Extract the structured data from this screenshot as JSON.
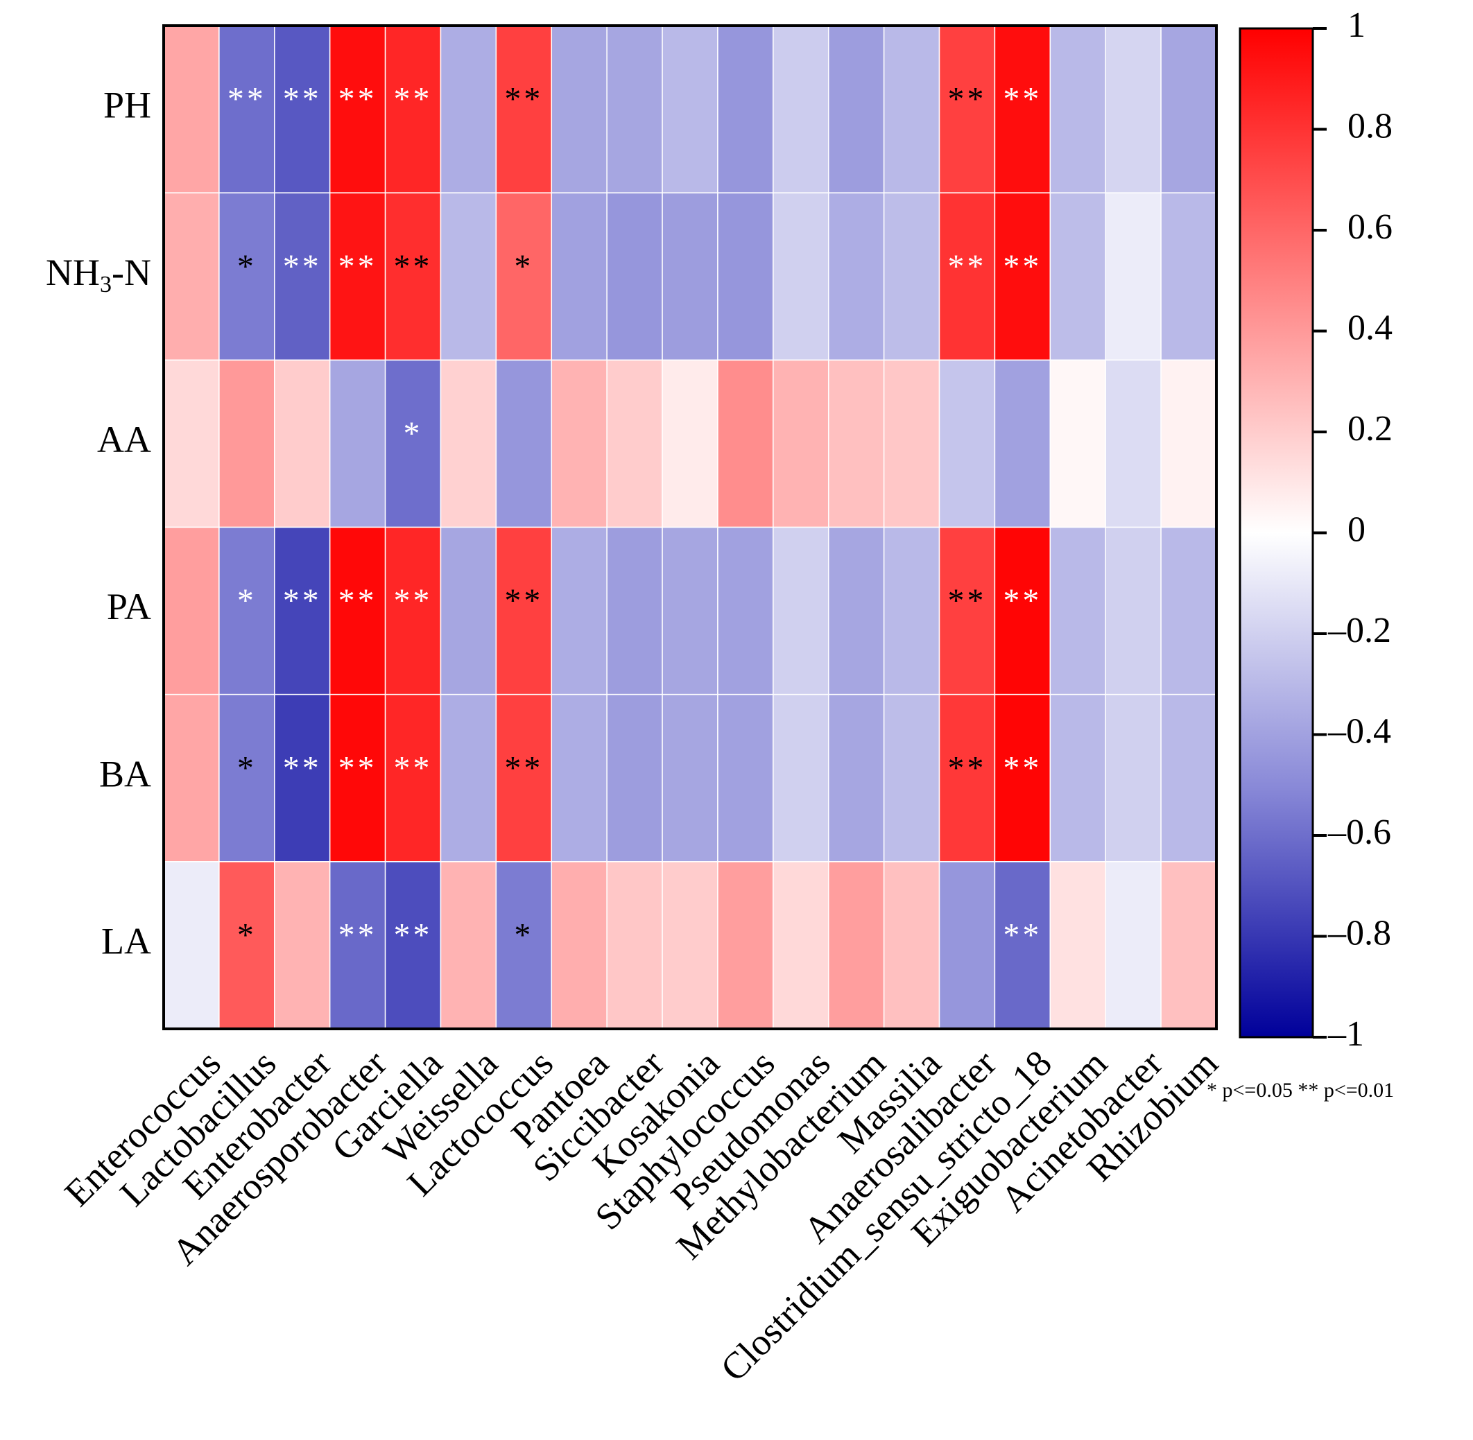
{
  "chart_data": {
    "type": "heatmap",
    "title": "",
    "rows": [
      "PH",
      "NH3-N",
      "AA",
      "PA",
      "BA",
      "LA"
    ],
    "row_labels": [
      {
        "main": "PH",
        "sub": "",
        "tail": ""
      },
      {
        "main": "NH",
        "sub": "3",
        "tail": "-N"
      },
      {
        "main": "AA",
        "sub": "",
        "tail": ""
      },
      {
        "main": "PA",
        "sub": "",
        "tail": ""
      },
      {
        "main": "BA",
        "sub": "",
        "tail": ""
      },
      {
        "main": "LA",
        "sub": "",
        "tail": ""
      }
    ],
    "columns": [
      "Enterococcus",
      "Lactobacillus",
      "Enterobacter",
      "Anaerosporobacter",
      "Garciella",
      "Weissella",
      "Lactococcus",
      "Pantoea",
      "Siccibacter",
      "Kosakonia",
      "Staphylococcus",
      "Pseudomonas",
      "Methylobacterium",
      "Massilia",
      "Anaerosalibacter",
      "Clostridium_sensu_stricto_18",
      "Exiguobacterium",
      "Acinetobacter",
      "Rhizobium"
    ],
    "values": [
      [
        0.35,
        -0.6,
        -0.68,
        0.95,
        0.85,
        -0.35,
        0.75,
        -0.38,
        -0.38,
        -0.3,
        -0.45,
        -0.22,
        -0.42,
        -0.3,
        0.75,
        0.95,
        -0.3,
        -0.18,
        -0.38
      ],
      [
        0.32,
        -0.55,
        -0.65,
        0.92,
        0.82,
        -0.3,
        0.6,
        -0.4,
        -0.45,
        -0.42,
        -0.45,
        -0.2,
        -0.35,
        -0.28,
        0.8,
        0.95,
        -0.28,
        -0.08,
        -0.3
      ],
      [
        0.15,
        0.4,
        0.2,
        -0.38,
        -0.6,
        0.18,
        -0.45,
        0.3,
        0.2,
        0.08,
        0.45,
        0.3,
        0.25,
        0.22,
        -0.25,
        -0.4,
        0.03,
        -0.15,
        0.05
      ],
      [
        0.38,
        -0.55,
        -0.75,
        0.97,
        0.85,
        -0.38,
        0.75,
        -0.35,
        -0.42,
        -0.38,
        -0.4,
        -0.2,
        -0.38,
        -0.3,
        0.75,
        0.98,
        -0.3,
        -0.2,
        -0.3
      ],
      [
        0.35,
        -0.55,
        -0.78,
        0.97,
        0.85,
        -0.35,
        0.75,
        -0.35,
        -0.42,
        -0.38,
        -0.4,
        -0.2,
        -0.38,
        -0.28,
        0.78,
        0.98,
        -0.3,
        -0.2,
        -0.3
      ],
      [
        -0.08,
        0.65,
        0.3,
        -0.62,
        -0.72,
        0.3,
        -0.55,
        0.32,
        0.22,
        0.2,
        0.38,
        0.15,
        0.38,
        0.25,
        -0.45,
        -0.62,
        0.12,
        -0.08,
        0.25
      ]
    ],
    "significance": [
      [
        "",
        "**",
        "**",
        "**",
        "**",
        "",
        "**",
        "",
        "",
        "",
        "",
        "",
        "",
        "",
        "**",
        "**",
        "",
        "",
        ""
      ],
      [
        "",
        "*",
        "**",
        "**",
        "**",
        "",
        "*",
        "",
        "",
        "",
        "",
        "",
        "",
        "",
        "**",
        "**",
        "",
        "",
        ""
      ],
      [
        "",
        "",
        "",
        "",
        "*",
        "",
        "",
        "",
        "",
        "",
        "",
        "",
        "",
        "",
        "",
        "",
        "",
        "",
        ""
      ],
      [
        "",
        "*",
        "**",
        "**",
        "**",
        "",
        "**",
        "",
        "",
        "",
        "",
        "",
        "",
        "",
        "**",
        "**",
        "",
        "",
        ""
      ],
      [
        "",
        "*",
        "**",
        "**",
        "**",
        "",
        "**",
        "",
        "",
        "",
        "",
        "",
        "",
        "",
        "**",
        "**",
        "",
        "",
        ""
      ],
      [
        "",
        "*",
        "",
        "**",
        "**",
        "",
        "*",
        "",
        "",
        "",
        "",
        "",
        "",
        "",
        "",
        "**",
        "",
        "",
        ""
      ]
    ],
    "significance_color": [
      [
        "",
        "w",
        "w",
        "w",
        "w",
        "",
        "b",
        "",
        "",
        "",
        "",
        "",
        "",
        "",
        "b",
        "w",
        "",
        "",
        ""
      ],
      [
        "",
        "b",
        "w",
        "w",
        "b",
        "",
        "b",
        "",
        "",
        "",
        "",
        "",
        "",
        "",
        "w",
        "w",
        "",
        "",
        ""
      ],
      [
        "",
        "",
        "",
        "",
        "w",
        "",
        "",
        "",
        "",
        "",
        "",
        "",
        "",
        "",
        "",
        "",
        "",
        "",
        ""
      ],
      [
        "",
        "w",
        "w",
        "w",
        "w",
        "",
        "b",
        "",
        "",
        "",
        "",
        "",
        "",
        "",
        "b",
        "w",
        "",
        "",
        ""
      ],
      [
        "",
        "b",
        "w",
        "w",
        "w",
        "",
        "b",
        "",
        "",
        "",
        "",
        "",
        "",
        "",
        "b",
        "w",
        "",
        "",
        ""
      ],
      [
        "",
        "b",
        "",
        "w",
        "w",
        "",
        "b",
        "",
        "",
        "",
        "",
        "",
        "",
        "",
        "",
        "w",
        "",
        "",
        ""
      ]
    ],
    "colorbar": {
      "range": [
        -1,
        1
      ],
      "ticks": [
        1,
        0.8,
        0.6,
        0.4,
        0.2,
        0,
        -0.2,
        -0.4,
        -0.6,
        -0.8,
        -1
      ],
      "tick_labels": [
        "1",
        "0.8",
        "0.6",
        "0.4",
        "0.2",
        "0",
        "-0.2",
        "-0.4",
        "-0.6",
        "-0.8",
        "-1"
      ],
      "colors": {
        "neg": "#00009a",
        "mid_neg": "#8a8ad8",
        "zero": "#ffffff",
        "mid_pos": "#ff8080",
        "pos": "#ff0000"
      }
    },
    "legend_note": "* p<=0.05  ** p<=0.01"
  }
}
